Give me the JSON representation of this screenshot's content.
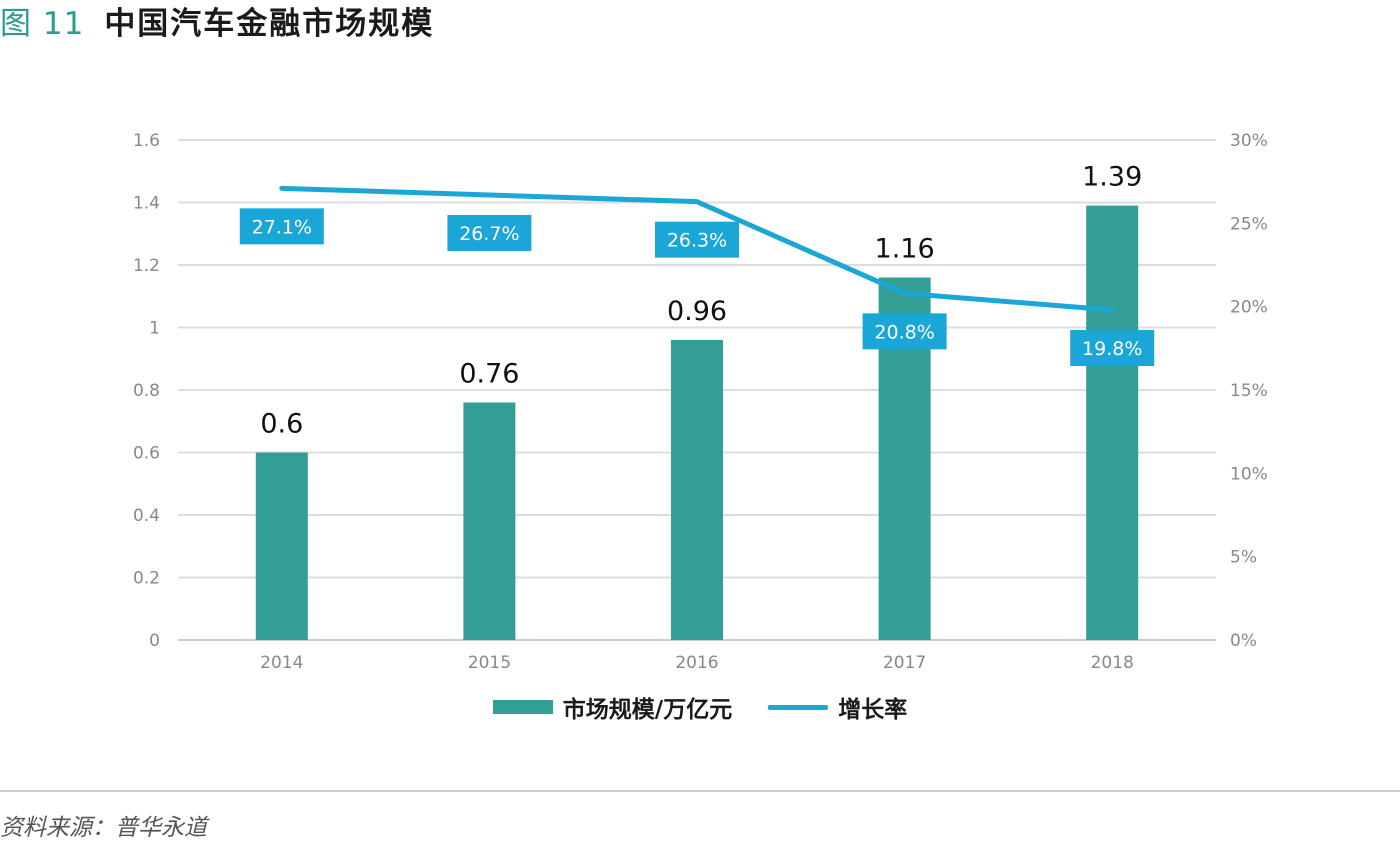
{
  "figure": {
    "label": "图 11",
    "title": "中国汽车金融市场规模"
  },
  "chart_data": {
    "type": "bar",
    "categories": [
      "2014",
      "2015",
      "2016",
      "2017",
      "2018"
    ],
    "series": [
      {
        "name": "市场规模/万亿元",
        "type": "bar",
        "axis": "left",
        "values": [
          0.6,
          0.76,
          0.96,
          1.16,
          1.39
        ],
        "labels": [
          "0.6",
          "0.76",
          "0.96",
          "1.16",
          "1.39"
        ],
        "color": "#339e96"
      },
      {
        "name": "增长率",
        "type": "line",
        "axis": "right",
        "values": [
          27.1,
          26.7,
          26.3,
          20.8,
          19.8
        ],
        "labels": [
          "27.1%",
          "26.7%",
          "26.3%",
          "20.8%",
          "19.8%"
        ],
        "color": "#1aa6d6"
      }
    ],
    "y_left": {
      "min": 0,
      "max": 1.6,
      "ticks": [
        0,
        0.2,
        0.4,
        0.6,
        0.8,
        1,
        1.2,
        1.4,
        1.6
      ],
      "tick_labels": [
        "0",
        "0.2",
        "0.4",
        "0.6",
        "0.8",
        "1",
        "1.2",
        "1.4",
        "1.6"
      ]
    },
    "y_right": {
      "min": 0,
      "max": 30,
      "ticks": [
        0,
        5,
        10,
        15,
        20,
        25,
        30
      ],
      "tick_labels": [
        "0%",
        "5%",
        "10%",
        "15%",
        "20%",
        "25%",
        "30%"
      ]
    },
    "grid": true,
    "legend_position": "bottom-center",
    "colors": {
      "bar": "#339e96",
      "line": "#1aa6d6",
      "grid": "#dddddd",
      "tick_text": "#888888"
    }
  },
  "legend": {
    "bar_label": "市场规模/万亿元",
    "line_label": "增长率"
  },
  "footer": {
    "source": "资料来源：普华永道"
  }
}
